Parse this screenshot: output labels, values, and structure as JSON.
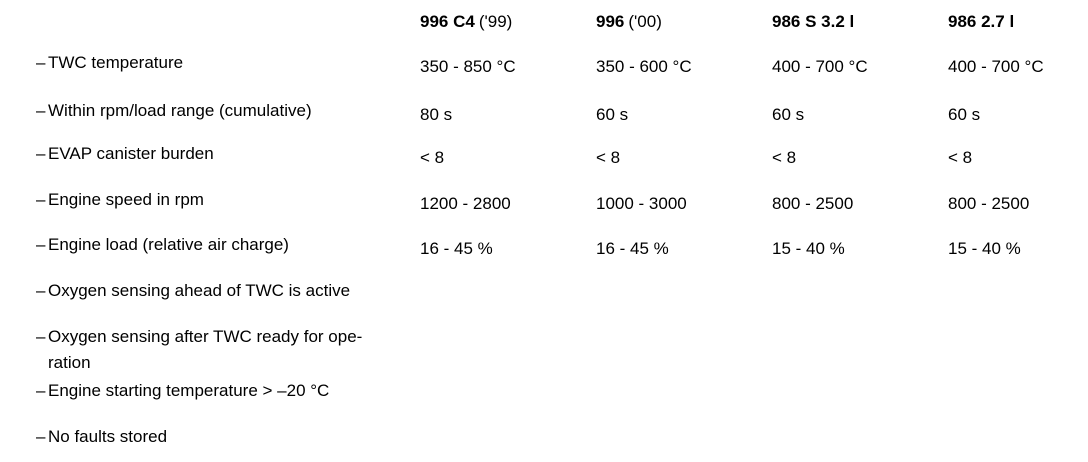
{
  "bullet": "–",
  "header": [
    {
      "model": "996 C4",
      "year": "('99)"
    },
    {
      "model": "996",
      "year": "('00)"
    },
    {
      "model": "986 S 3.2 l"
    },
    {
      "model": "986 2.7 l"
    }
  ],
  "rows": [
    {
      "label": [
        "TWC temperature"
      ],
      "values": [
        "350 - 850 °C",
        "350 - 600 °C",
        "400 - 700 °C",
        "400 - 700 °C"
      ]
    },
    {
      "label": [
        "Within rpm/load range (cumulative)"
      ],
      "values": [
        "80 s",
        "60 s",
        "60 s",
        "60 s"
      ]
    },
    {
      "label": [
        "EVAP canister burden"
      ],
      "values": [
        "< 8",
        "< 8",
        "< 8",
        "< 8"
      ]
    },
    {
      "label": [
        "Engine speed in rpm"
      ],
      "values": [
        "1200 - 2800",
        "1000 - 3000",
        "800 - 2500",
        "800 - 2500"
      ]
    },
    {
      "label": [
        "Engine load (relative air charge)"
      ],
      "values": [
        "16 - 45 %",
        "16 - 45 %",
        "15 - 40 %",
        "15 - 40 %"
      ]
    },
    {
      "label": [
        "Oxygen sensing ahead of TWC is active"
      ]
    },
    {
      "label": [
        "Oxygen sensing after TWC ready for ope-",
        "ration"
      ]
    },
    {
      "label": [
        "Engine starting temperature > –20 °C"
      ]
    },
    {
      "label": [
        "No faults stored"
      ]
    }
  ]
}
